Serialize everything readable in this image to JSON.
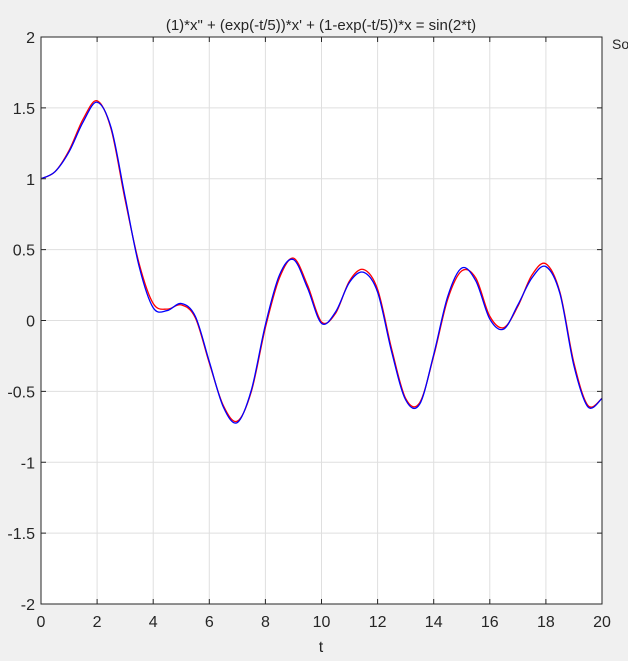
{
  "chart_data": {
    "type": "line",
    "title": "(1)*x\" + (exp(-t/5))*x' + (1-exp(-t/5))*x = sin(2*t)",
    "xlabel": "t",
    "ylabel": "",
    "xlim": [
      0,
      20
    ],
    "ylim": [
      -2,
      2
    ],
    "xticks": [
      0,
      2,
      4,
      6,
      8,
      10,
      12,
      14,
      16,
      18,
      20
    ],
    "yticks": [
      -2,
      -1.5,
      -1,
      -0.5,
      0,
      0.5,
      1,
      1.5,
      2
    ],
    "grid": true,
    "legend_text": "So",
    "series": [
      {
        "color": "#ff0000",
        "x": [
          0,
          0.5,
          1,
          1.5,
          2,
          2.5,
          3,
          3.5,
          4,
          4.5,
          5,
          5.5,
          6,
          6.5,
          7,
          7.5,
          8,
          8.5,
          9,
          9.5,
          10,
          10.5,
          11,
          11.5,
          12,
          12.5,
          13,
          13.5,
          14,
          14.5,
          15,
          15.5,
          16,
          16.5,
          17,
          17.5,
          18,
          18.5,
          19,
          19.5,
          20
        ],
        "y": [
          1.0,
          1.05,
          1.2,
          1.42,
          1.55,
          1.35,
          0.85,
          0.4,
          0.12,
          0.08,
          0.11,
          0.02,
          -0.3,
          -0.6,
          -0.71,
          -0.5,
          -0.05,
          0.3,
          0.44,
          0.25,
          -0.01,
          0.05,
          0.28,
          0.36,
          0.22,
          -0.2,
          -0.55,
          -0.58,
          -0.25,
          0.15,
          0.35,
          0.3,
          0.03,
          -0.05,
          0.1,
          0.32,
          0.4,
          0.2,
          -0.3,
          -0.6,
          -0.55
        ]
      },
      {
        "color": "#0000ff",
        "x": [
          0,
          0.5,
          1,
          1.5,
          2,
          2.5,
          3,
          3.5,
          4,
          4.5,
          5,
          5.5,
          6,
          6.5,
          7,
          7.5,
          8,
          8.5,
          9,
          9.5,
          10,
          10.5,
          11,
          11.5,
          12,
          12.5,
          13,
          13.5,
          14,
          14.5,
          15,
          15.5,
          16,
          16.5,
          17,
          17.5,
          18,
          18.5,
          19,
          19.5,
          20
        ],
        "y": [
          1.0,
          1.05,
          1.19,
          1.4,
          1.54,
          1.36,
          0.87,
          0.38,
          0.09,
          0.07,
          0.12,
          0.03,
          -0.29,
          -0.61,
          -0.72,
          -0.49,
          -0.03,
          0.32,
          0.43,
          0.23,
          -0.02,
          0.06,
          0.27,
          0.34,
          0.2,
          -0.22,
          -0.56,
          -0.59,
          -0.24,
          0.17,
          0.37,
          0.28,
          0.01,
          -0.06,
          0.11,
          0.3,
          0.38,
          0.19,
          -0.32,
          -0.61,
          -0.55
        ]
      }
    ]
  }
}
